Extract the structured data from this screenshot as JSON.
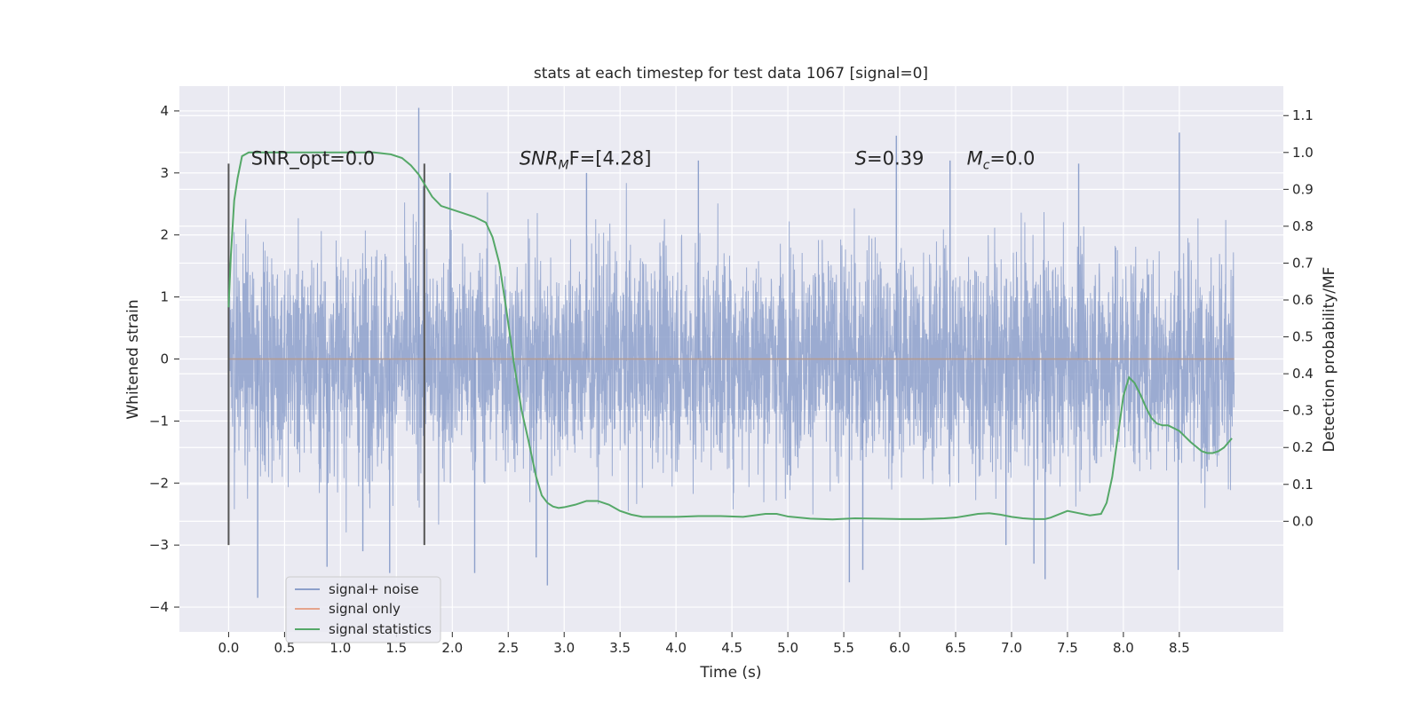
{
  "chart_data": {
    "type": "line",
    "title": "stats at each timestep for test data 1067 [signal=0]",
    "xlabel": "Time (s)",
    "ylabel": "Whitened strain",
    "ylabel_right": "Detection probability/MF",
    "xlim": [
      -0.44,
      9.43
    ],
    "ylim": [
      -4.4,
      4.4
    ],
    "ylim_right": [
      -0.3,
      1.18
    ],
    "x_ticks": [
      0.0,
      0.5,
      1.0,
      1.5,
      2.0,
      2.5,
      3.0,
      3.5,
      4.0,
      4.5,
      5.0,
      5.5,
      6.0,
      6.5,
      7.0,
      7.5,
      8.0,
      8.5
    ],
    "y_ticks": [
      -4,
      -3,
      -2,
      -1,
      0,
      1,
      2,
      3,
      4
    ],
    "y_right_ticks": [
      0.0,
      0.1,
      0.2,
      0.3,
      0.4,
      0.5,
      0.6,
      0.7,
      0.8,
      0.9,
      1.0,
      1.1
    ],
    "grid": true,
    "vlines": [
      {
        "x": 0.0,
        "ymin": -3.0,
        "ymax": 3.15
      },
      {
        "x": 1.75,
        "ymin": -3.0,
        "ymax": 3.15
      }
    ],
    "annotations": [
      {
        "x": 0.2,
        "y": 3.25,
        "text": "SNR_opt=0.0"
      },
      {
        "x": 2.6,
        "y": 3.25,
        "text": "SNR",
        "sub": "M",
        "suffix": "F=[4.28]",
        "italic": true
      },
      {
        "x": 5.6,
        "y": 3.25,
        "text": "S",
        "suffix": "=0.39",
        "italic": true
      },
      {
        "x": 6.6,
        "y": 3.25,
        "text": "M",
        "sub": "c",
        "suffix": "=0.0",
        "italic": true
      }
    ],
    "legend": {
      "placement": "lower-left",
      "entries": [
        "signal+ noise",
        "signal only",
        "signal statistics"
      ]
    },
    "series": [
      {
        "name": "signal+ noise",
        "axis": "left",
        "color": "#8da0cb",
        "x_range": [
          0.0,
          8.99
        ],
        "typical_range": [
          -1.9,
          1.9
        ],
        "spikes": [
          {
            "x": 0.26,
            "y": -3.85
          },
          {
            "x": 0.88,
            "y": -3.35
          },
          {
            "x": 1.44,
            "y": -3.45
          },
          {
            "x": 1.7,
            "y": 4.05
          },
          {
            "x": 2.2,
            "y": -3.45
          },
          {
            "x": 2.85,
            "y": -3.65
          },
          {
            "x": 3.2,
            "y": 3.0
          },
          {
            "x": 5.55,
            "y": -3.6
          },
          {
            "x": 5.67,
            "y": -3.4
          },
          {
            "x": 5.97,
            "y": 3.6
          },
          {
            "x": 7.2,
            "y": -3.3
          },
          {
            "x": 7.3,
            "y": -3.55
          },
          {
            "x": 8.5,
            "y": 3.65
          },
          {
            "x": 8.49,
            "y": -3.4
          },
          {
            "x": 4.2,
            "y": 3.2
          },
          {
            "x": 6.45,
            "y": 3.2
          },
          {
            "x": 1.98,
            "y": 3.0
          },
          {
            "x": 7.6,
            "y": 3.15
          },
          {
            "x": 1.2,
            "y": -3.1
          },
          {
            "x": 2.75,
            "y": -3.2
          },
          {
            "x": 6.95,
            "y": -3.0
          }
        ]
      },
      {
        "name": "signal only",
        "axis": "left",
        "color": "#e5a48c",
        "x": [
          0.0,
          8.99
        ],
        "y": [
          0.0,
          0.0
        ]
      },
      {
        "name": "signal statistics",
        "axis": "right",
        "color": "#55a868",
        "x": [
          0.0,
          0.02,
          0.05,
          0.08,
          0.12,
          0.18,
          0.25,
          0.35,
          0.5,
          0.7,
          0.9,
          1.1,
          1.3,
          1.45,
          1.55,
          1.63,
          1.7,
          1.75,
          1.82,
          1.9,
          2.0,
          2.1,
          2.2,
          2.3,
          2.36,
          2.42,
          2.48,
          2.55,
          2.62,
          2.68,
          2.75,
          2.8,
          2.85,
          2.9,
          2.95,
          3.0,
          3.1,
          3.2,
          3.3,
          3.4,
          3.5,
          3.6,
          3.7,
          3.8,
          3.9,
          4.0,
          4.2,
          4.4,
          4.6,
          4.8,
          4.9,
          5.0,
          5.2,
          5.4,
          5.6,
          5.8,
          6.0,
          6.2,
          6.4,
          6.5,
          6.6,
          6.7,
          6.8,
          6.9,
          7.0,
          7.1,
          7.2,
          7.3,
          7.35,
          7.4,
          7.5,
          7.6,
          7.7,
          7.8,
          7.85,
          7.9,
          7.95,
          8.0,
          8.05,
          8.1,
          8.15,
          8.2,
          8.25,
          8.3,
          8.35,
          8.4,
          8.5,
          8.6,
          8.7,
          8.75,
          8.8,
          8.85,
          8.9,
          8.97
        ],
        "y": [
          0.58,
          0.72,
          0.87,
          0.93,
          0.99,
          1.0,
          1.0,
          1.0,
          1.0,
          1.0,
          1.0,
          1.0,
          1.0,
          0.995,
          0.985,
          0.965,
          0.94,
          0.915,
          0.88,
          0.855,
          0.845,
          0.835,
          0.825,
          0.81,
          0.77,
          0.7,
          0.58,
          0.43,
          0.3,
          0.22,
          0.12,
          0.07,
          0.05,
          0.04,
          0.036,
          0.038,
          0.045,
          0.055,
          0.055,
          0.045,
          0.028,
          0.018,
          0.012,
          0.012,
          0.012,
          0.012,
          0.014,
          0.014,
          0.012,
          0.02,
          0.02,
          0.013,
          0.007,
          0.005,
          0.008,
          0.007,
          0.006,
          0.006,
          0.008,
          0.01,
          0.015,
          0.02,
          0.022,
          0.018,
          0.012,
          0.008,
          0.006,
          0.006,
          0.01,
          0.016,
          0.028,
          0.022,
          0.016,
          0.02,
          0.05,
          0.12,
          0.23,
          0.34,
          0.39,
          0.375,
          0.345,
          0.31,
          0.28,
          0.265,
          0.26,
          0.26,
          0.245,
          0.215,
          0.19,
          0.185,
          0.185,
          0.19,
          0.2,
          0.225
        ]
      }
    ]
  }
}
